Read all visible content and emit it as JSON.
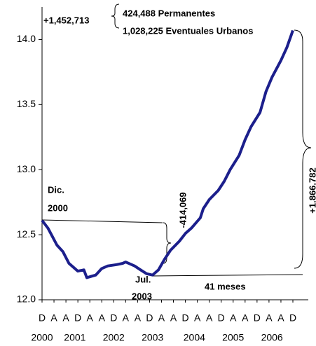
{
  "chart_data": {
    "type": "line",
    "x": [
      0,
      2,
      5,
      7,
      9,
      12,
      14,
      15,
      18,
      20,
      22,
      25,
      27,
      28,
      31,
      33,
      35,
      37,
      39,
      41,
      43,
      46,
      48,
      50,
      53,
      54,
      56,
      59,
      61,
      63,
      66,
      68,
      70,
      73,
      75,
      77,
      80,
      82,
      84
    ],
    "series": [
      {
        "color": "#1c1f8c",
        "values": [
          12.61,
          12.55,
          12.42,
          12.37,
          12.28,
          12.22,
          12.23,
          12.17,
          12.19,
          12.24,
          12.26,
          12.27,
          12.28,
          12.29,
          12.26,
          12.23,
          12.2,
          12.19,
          12.23,
          12.31,
          12.38,
          12.45,
          12.51,
          12.55,
          12.63,
          12.7,
          12.77,
          12.84,
          12.91,
          13.0,
          13.11,
          13.23,
          13.33,
          13.44,
          13.6,
          13.71,
          13.84,
          13.94,
          14.07
        ]
      }
    ],
    "xlim": [
      0,
      84
    ],
    "xticks": [
      {
        "value": 0,
        "label": "D"
      },
      {
        "value": 4,
        "label": "A"
      },
      {
        "value": 8,
        "label": "A"
      },
      {
        "value": 12,
        "label": "D"
      },
      {
        "value": 16,
        "label": "A"
      },
      {
        "value": 20,
        "label": "A"
      },
      {
        "value": 24,
        "label": "D"
      },
      {
        "value": 28,
        "label": "A"
      },
      {
        "value": 32,
        "label": "A"
      },
      {
        "value": 36,
        "label": "D"
      },
      {
        "value": 40,
        "label": "A"
      },
      {
        "value": 44,
        "label": "A"
      },
      {
        "value": 48,
        "label": "D"
      },
      {
        "value": 52,
        "label": "A"
      },
      {
        "value": 56,
        "label": "A"
      },
      {
        "value": 60,
        "label": "D"
      },
      {
        "value": 64,
        "label": "A"
      },
      {
        "value": 68,
        "label": "A"
      },
      {
        "value": 72,
        "label": "D"
      },
      {
        "value": 76,
        "label": "A"
      },
      {
        "value": 80,
        "label": "A"
      },
      {
        "value": 84,
        "label": "D"
      }
    ],
    "year_ticks": [
      {
        "value": 0,
        "label": "2000"
      },
      {
        "value": 11,
        "label": "2001"
      },
      {
        "value": 24,
        "label": "2002"
      },
      {
        "value": 37,
        "label": "2003"
      },
      {
        "value": 51,
        "label": "2004"
      },
      {
        "value": 64,
        "label": "2005"
      },
      {
        "value": 77,
        "label": "2006"
      }
    ],
    "ylim": [
      12.0,
      14.25
    ],
    "yticks": [
      {
        "value": 12.0,
        "label": "12.0"
      },
      {
        "value": 12.5,
        "label": "12.5"
      },
      {
        "value": 13.0,
        "label": "13.0"
      },
      {
        "value": 13.5,
        "label": "13.5"
      },
      {
        "value": 14.0,
        "label": "14.0"
      }
    ],
    "annotations": [
      "+1,452,713",
      "424,488  Permanentes",
      "1,028,225 Eventuales Urbanos",
      "Dic.",
      "2000",
      "Jul.",
      "2003",
      "-414,069",
      "+1.866.782",
      "41 meses"
    ]
  }
}
